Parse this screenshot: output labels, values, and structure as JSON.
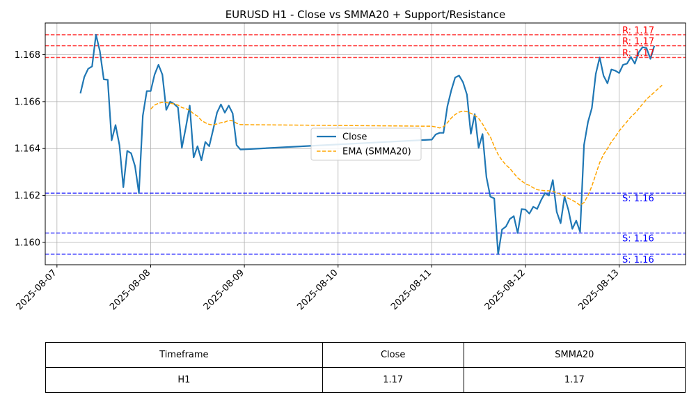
{
  "chart_data": {
    "type": "line",
    "title": "EURUSD H1 - Close vs SMMA20 + Support/Resistance",
    "xlabel": "",
    "ylabel": "",
    "xlim": [
      "2025-08-06T21:00",
      "2025-08-13T17:00"
    ],
    "ylim": [
      1.15905,
      1.16935
    ],
    "grid": true,
    "legend_position": "center",
    "x_ticks": [
      "2025-08-07",
      "2025-08-08",
      "2025-08-09",
      "2025-08-10",
      "2025-08-11",
      "2025-08-12",
      "2025-08-13"
    ],
    "y_ticks": [
      "1.160",
      "1.162",
      "1.164",
      "1.166",
      "1.168"
    ],
    "series": [
      {
        "name": "Close",
        "color": "#1f77b4",
        "style": "solid",
        "points": [
          [
            "2025-08-07T06:00",
            1.16635
          ],
          [
            "2025-08-07T07:00",
            1.16705
          ],
          [
            "2025-08-07T08:00",
            1.1674
          ],
          [
            "2025-08-07T09:00",
            1.1675
          ],
          [
            "2025-08-07T10:00",
            1.16885
          ],
          [
            "2025-08-07T11:00",
            1.16815
          ],
          [
            "2025-08-07T12:00",
            1.16695
          ],
          [
            "2025-08-07T13:00",
            1.16693
          ],
          [
            "2025-08-07T14:00",
            1.16435
          ],
          [
            "2025-08-07T15:00",
            1.165
          ],
          [
            "2025-08-07T16:00",
            1.16415
          ],
          [
            "2025-08-07T17:00",
            1.16235
          ],
          [
            "2025-08-07T18:00",
            1.1639
          ],
          [
            "2025-08-07T19:00",
            1.1638
          ],
          [
            "2025-08-07T20:00",
            1.16325
          ],
          [
            "2025-08-07T21:00",
            1.1621
          ],
          [
            "2025-08-07T22:00",
            1.1654
          ],
          [
            "2025-08-07T23:00",
            1.16645
          ],
          [
            "2025-08-08T00:00",
            1.16645
          ],
          [
            "2025-08-08T01:00",
            1.16715
          ],
          [
            "2025-08-08T02:00",
            1.16757
          ],
          [
            "2025-08-08T03:00",
            1.16715
          ],
          [
            "2025-08-08T04:00",
            1.16565
          ],
          [
            "2025-08-08T05:00",
            1.166
          ],
          [
            "2025-08-08T06:00",
            1.1659
          ],
          [
            "2025-08-08T07:00",
            1.16575
          ],
          [
            "2025-08-08T08:00",
            1.16403
          ],
          [
            "2025-08-08T09:00",
            1.1649
          ],
          [
            "2025-08-08T10:00",
            1.16583
          ],
          [
            "2025-08-08T11:00",
            1.16362
          ],
          [
            "2025-08-08T12:00",
            1.1641
          ],
          [
            "2025-08-08T13:00",
            1.1635
          ],
          [
            "2025-08-08T14:00",
            1.16428
          ],
          [
            "2025-08-08T15:00",
            1.1641
          ],
          [
            "2025-08-08T16:00",
            1.1648
          ],
          [
            "2025-08-08T17:00",
            1.16553
          ],
          [
            "2025-08-08T18:00",
            1.16588
          ],
          [
            "2025-08-08T19:00",
            1.16553
          ],
          [
            "2025-08-08T20:00",
            1.16583
          ],
          [
            "2025-08-08T21:00",
            1.1655
          ],
          [
            "2025-08-08T22:00",
            1.16415
          ],
          [
            "2025-08-08T23:00",
            1.16396
          ],
          [
            "2025-08-11T00:00",
            1.16438
          ],
          [
            "2025-08-11T01:00",
            1.1646
          ],
          [
            "2025-08-11T02:00",
            1.16467
          ],
          [
            "2025-08-11T03:00",
            1.16467
          ],
          [
            "2025-08-11T04:00",
            1.1658
          ],
          [
            "2025-08-11T05:00",
            1.16648
          ],
          [
            "2025-08-11T06:00",
            1.16703
          ],
          [
            "2025-08-11T07:00",
            1.16711
          ],
          [
            "2025-08-11T08:00",
            1.16683
          ],
          [
            "2025-08-11T09:00",
            1.1663
          ],
          [
            "2025-08-11T10:00",
            1.16463
          ],
          [
            "2025-08-11T11:00",
            1.16547
          ],
          [
            "2025-08-11T12:00",
            1.16403
          ],
          [
            "2025-08-11T13:00",
            1.16462
          ],
          [
            "2025-08-11T14:00",
            1.16278
          ],
          [
            "2025-08-11T15:00",
            1.16195
          ],
          [
            "2025-08-11T16:00",
            1.16188
          ],
          [
            "2025-08-11T17:00",
            1.1595
          ],
          [
            "2025-08-11T18:00",
            1.16055
          ],
          [
            "2025-08-11T19:00",
            1.16068
          ],
          [
            "2025-08-11T20:00",
            1.161
          ],
          [
            "2025-08-11T21:00",
            1.16112
          ],
          [
            "2025-08-11T22:00",
            1.1604
          ],
          [
            "2025-08-11T23:00",
            1.16142
          ],
          [
            "2025-08-12T00:00",
            1.1614
          ],
          [
            "2025-08-12T01:00",
            1.16123
          ],
          [
            "2025-08-12T02:00",
            1.16152
          ],
          [
            "2025-08-12T03:00",
            1.16143
          ],
          [
            "2025-08-12T04:00",
            1.1618
          ],
          [
            "2025-08-12T05:00",
            1.1621
          ],
          [
            "2025-08-12T06:00",
            1.162
          ],
          [
            "2025-08-12T07:00",
            1.16266
          ],
          [
            "2025-08-12T08:00",
            1.1613
          ],
          [
            "2025-08-12T09:00",
            1.16082
          ],
          [
            "2025-08-12T10:00",
            1.16195
          ],
          [
            "2025-08-12T11:00",
            1.16138
          ],
          [
            "2025-08-12T12:00",
            1.16058
          ],
          [
            "2025-08-12T13:00",
            1.16093
          ],
          [
            "2025-08-12T14:00",
            1.16045
          ],
          [
            "2025-08-12T15:00",
            1.16415
          ],
          [
            "2025-08-12T16:00",
            1.16513
          ],
          [
            "2025-08-12T17:00",
            1.16573
          ],
          [
            "2025-08-12T18:00",
            1.16718
          ],
          [
            "2025-08-12T19:00",
            1.16788
          ],
          [
            "2025-08-12T20:00",
            1.1671
          ],
          [
            "2025-08-12T21:00",
            1.16678
          ],
          [
            "2025-08-12T22:00",
            1.16737
          ],
          [
            "2025-08-12T23:00",
            1.16732
          ],
          [
            "2025-08-13T00:00",
            1.16722
          ],
          [
            "2025-08-13T01:00",
            1.16757
          ],
          [
            "2025-08-13T02:00",
            1.16762
          ],
          [
            "2025-08-13T03:00",
            1.1679
          ],
          [
            "2025-08-13T04:00",
            1.16762
          ],
          [
            "2025-08-13T05:00",
            1.1681
          ],
          [
            "2025-08-13T06:00",
            1.16832
          ],
          [
            "2025-08-13T07:00",
            1.16828
          ],
          [
            "2025-08-13T08:00",
            1.16782
          ],
          [
            "2025-08-13T09:00",
            1.16838
          ]
        ]
      },
      {
        "name": "EMA (SMMA20)",
        "color": "#ffa500",
        "style": "dashed",
        "points": [
          [
            "2025-08-08T00:00",
            1.16568
          ],
          [
            "2025-08-08T01:00",
            1.16585
          ],
          [
            "2025-08-08T02:00",
            1.16593
          ],
          [
            "2025-08-08T03:00",
            1.16597
          ],
          [
            "2025-08-08T04:00",
            1.16596
          ],
          [
            "2025-08-08T05:00",
            1.16593
          ],
          [
            "2025-08-08T06:00",
            1.1659
          ],
          [
            "2025-08-08T07:00",
            1.16585
          ],
          [
            "2025-08-08T08:00",
            1.16575
          ],
          [
            "2025-08-08T09:00",
            1.1657
          ],
          [
            "2025-08-08T10:00",
            1.16563
          ],
          [
            "2025-08-08T11:00",
            1.16548
          ],
          [
            "2025-08-08T12:00",
            1.16538
          ],
          [
            "2025-08-08T13:00",
            1.1652
          ],
          [
            "2025-08-08T14:00",
            1.1651
          ],
          [
            "2025-08-08T15:00",
            1.16503
          ],
          [
            "2025-08-08T16:00",
            1.165
          ],
          [
            "2025-08-08T17:00",
            1.16505
          ],
          [
            "2025-08-08T18:00",
            1.1651
          ],
          [
            "2025-08-08T19:00",
            1.16513
          ],
          [
            "2025-08-08T20:00",
            1.1652
          ],
          [
            "2025-08-08T21:00",
            1.16518
          ],
          [
            "2025-08-08T22:00",
            1.16508
          ],
          [
            "2025-08-08T23:00",
            1.16502
          ],
          [
            "2025-08-11T00:00",
            1.16495
          ],
          [
            "2025-08-11T01:00",
            1.16492
          ],
          [
            "2025-08-11T02:00",
            1.16488
          ],
          [
            "2025-08-11T03:00",
            1.16493
          ],
          [
            "2025-08-11T04:00",
            1.1651
          ],
          [
            "2025-08-11T05:00",
            1.1653
          ],
          [
            "2025-08-11T06:00",
            1.16545
          ],
          [
            "2025-08-11T07:00",
            1.16555
          ],
          [
            "2025-08-11T08:00",
            1.1656
          ],
          [
            "2025-08-11T09:00",
            1.16557
          ],
          [
            "2025-08-11T10:00",
            1.1655
          ],
          [
            "2025-08-11T11:00",
            1.16542
          ],
          [
            "2025-08-11T12:00",
            1.16528
          ],
          [
            "2025-08-11T13:00",
            1.16505
          ],
          [
            "2025-08-11T14:00",
            1.16475
          ],
          [
            "2025-08-11T15:00",
            1.1645
          ],
          [
            "2025-08-11T16:00",
            1.1641
          ],
          [
            "2025-08-11T17:00",
            1.16375
          ],
          [
            "2025-08-11T18:00",
            1.1635
          ],
          [
            "2025-08-11T19:00",
            1.1633
          ],
          [
            "2025-08-11T20:00",
            1.16315
          ],
          [
            "2025-08-11T21:00",
            1.16295
          ],
          [
            "2025-08-11T22:00",
            1.16275
          ],
          [
            "2025-08-11T23:00",
            1.16262
          ],
          [
            "2025-08-12T00:00",
            1.1625
          ],
          [
            "2025-08-12T01:00",
            1.16243
          ],
          [
            "2025-08-12T02:00",
            1.16233
          ],
          [
            "2025-08-12T03:00",
            1.16225
          ],
          [
            "2025-08-12T04:00",
            1.16222
          ],
          [
            "2025-08-12T05:00",
            1.1622
          ],
          [
            "2025-08-12T06:00",
            1.1622
          ],
          [
            "2025-08-12T07:00",
            1.16218
          ],
          [
            "2025-08-12T08:00",
            1.16212
          ],
          [
            "2025-08-12T09:00",
            1.16205
          ],
          [
            "2025-08-12T10:00",
            1.16198
          ],
          [
            "2025-08-12T11:00",
            1.16188
          ],
          [
            "2025-08-12T12:00",
            1.1618
          ],
          [
            "2025-08-12T13:00",
            1.1617
          ],
          [
            "2025-08-12T14:00",
            1.16158
          ],
          [
            "2025-08-12T15:00",
            1.1617
          ],
          [
            "2025-08-12T16:00",
            1.162
          ],
          [
            "2025-08-12T17:00",
            1.1624
          ],
          [
            "2025-08-12T18:00",
            1.1629
          ],
          [
            "2025-08-12T19:00",
            1.1634
          ],
          [
            "2025-08-12T20:00",
            1.16375
          ],
          [
            "2025-08-12T21:00",
            1.164
          ],
          [
            "2025-08-12T22:00",
            1.16428
          ],
          [
            "2025-08-12T23:00",
            1.1645
          ],
          [
            "2025-08-13T00:00",
            1.16475
          ],
          [
            "2025-08-13T01:00",
            1.16495
          ],
          [
            "2025-08-13T02:00",
            1.16515
          ],
          [
            "2025-08-13T03:00",
            1.16535
          ],
          [
            "2025-08-13T04:00",
            1.1655
          ],
          [
            "2025-08-13T05:00",
            1.1657
          ],
          [
            "2025-08-13T06:00",
            1.1659
          ],
          [
            "2025-08-13T07:00",
            1.1661
          ],
          [
            "2025-08-13T08:00",
            1.16625
          ],
          [
            "2025-08-13T09:00",
            1.1664
          ],
          [
            "2025-08-13T10:00",
            1.16655
          ],
          [
            "2025-08-13T11:00",
            1.1667
          ]
        ]
      }
    ],
    "resistance_levels": [
      {
        "value": 1.16885,
        "label": "R: 1.17"
      },
      {
        "value": 1.16838,
        "label": "R: 1.17"
      },
      {
        "value": 1.16788,
        "label": "R: 1.17"
      }
    ],
    "support_levels": [
      {
        "value": 1.1621,
        "label": "S: 1.16"
      },
      {
        "value": 1.1604,
        "label": "S: 1.16"
      },
      {
        "value": 1.1595,
        "label": "S: 1.16"
      }
    ],
    "resistance_color": "#ff0000",
    "support_color": "#0000ff",
    "legend": [
      "Close",
      "EMA (SMMA20)"
    ]
  },
  "table": {
    "headers": [
      "Timeframe",
      "Close",
      "SMMA20"
    ],
    "rows": [
      [
        "H1",
        "1.17",
        "1.17"
      ]
    ]
  }
}
